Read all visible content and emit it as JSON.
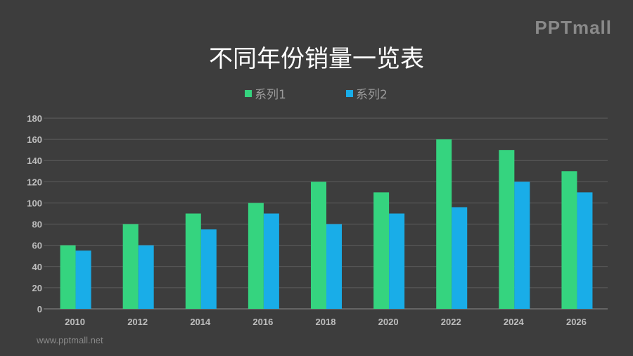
{
  "logo": "PPTmall",
  "footer": "www.pptmall.net",
  "colors": {
    "series1": "#35d47f",
    "series2": "#19ade8",
    "grid": "#5e5e5e",
    "background": "#3d3d3d"
  },
  "chart_data": {
    "type": "bar",
    "title": "不同年份销量一览表",
    "categories": [
      "2010",
      "2012",
      "2014",
      "2016",
      "2018",
      "2020",
      "2022",
      "2024",
      "2026"
    ],
    "series": [
      {
        "name": "系列1",
        "values": [
          60,
          80,
          90,
          100,
          120,
          110,
          160,
          150,
          130
        ]
      },
      {
        "name": "系列2",
        "values": [
          55,
          60,
          75,
          90,
          80,
          90,
          96,
          120,
          110
        ]
      }
    ],
    "ylim": [
      0,
      180
    ],
    "yticks": [
      0,
      20,
      40,
      60,
      80,
      100,
      120,
      140,
      160,
      180
    ],
    "grid": true,
    "legend": "top-center"
  }
}
